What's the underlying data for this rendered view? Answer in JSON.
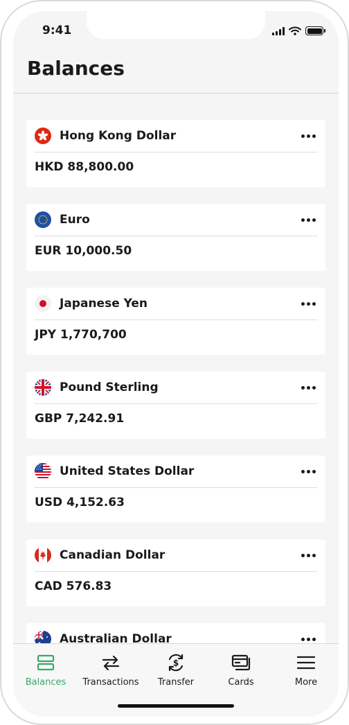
{
  "status": {
    "time": "9:41"
  },
  "page": {
    "title": "Balances"
  },
  "accounts": [
    {
      "flag": "hong-kong-flag-icon",
      "name": "Hong Kong Dollar",
      "amount": "HKD 88,800.00"
    },
    {
      "flag": "eu-flag-icon",
      "name": "Euro",
      "amount": "EUR 10,000.50"
    },
    {
      "flag": "japan-flag-icon",
      "name": "Japanese Yen",
      "amount": "JPY 1,770,700"
    },
    {
      "flag": "uk-flag-icon",
      "name": "Pound Sterling",
      "amount": "GBP 7,242.91"
    },
    {
      "flag": "us-flag-icon",
      "name": "United States Dollar",
      "amount": "USD 4,152.63"
    },
    {
      "flag": "canada-flag-icon",
      "name": "Canadian Dollar",
      "amount": "CAD 576.83"
    },
    {
      "flag": "australia-flag-icon",
      "name": "Australian Dollar",
      "amount": ""
    }
  ],
  "tabs": [
    {
      "label": "Balances",
      "icon": "balances-icon",
      "active": true
    },
    {
      "label": "Transactions",
      "icon": "transactions-icon",
      "active": false
    },
    {
      "label": "Transfer",
      "icon": "transfer-icon",
      "active": false
    },
    {
      "label": "Cards",
      "icon": "cards-icon",
      "active": false
    },
    {
      "label": "More",
      "icon": "menu-icon",
      "active": false
    }
  ],
  "colors": {
    "accent": "#3aa76d",
    "background": "#f5f5f5",
    "card": "#ffffff",
    "text": "#1a1a1a"
  }
}
